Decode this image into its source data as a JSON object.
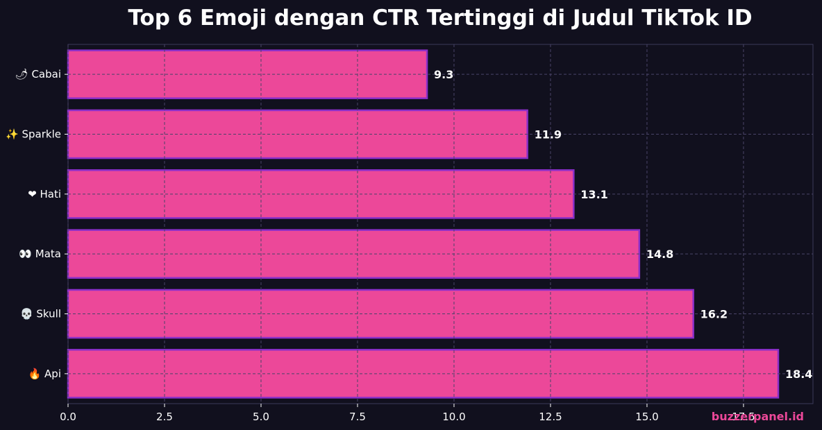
{
  "chart_data": {
    "type": "bar",
    "orientation": "horizontal",
    "title": "Top 6 Emoji dengan CTR Tertinggi di Judul TikTok ID",
    "categories": [
      "🌶 Cabai",
      "✨ Sparkle",
      "❤ Hati",
      "👀 Mata",
      "💀 Skull",
      "🔥 Api"
    ],
    "values": [
      9.3,
      11.9,
      13.1,
      14.8,
      16.2,
      18.4
    ],
    "value_labels": [
      "9.3",
      "11.9",
      "13.1",
      "14.8",
      "16.2",
      "18.4"
    ],
    "xlabel": "",
    "ylabel": "",
    "xlim": [
      0,
      19.3
    ],
    "xticks": [
      0,
      2.5,
      5,
      7.5,
      10,
      12.5,
      15,
      17.5
    ],
    "xtick_labels": [
      "0.0",
      "2.5",
      "5.0",
      "7.5",
      "10.0",
      "12.5",
      "15.0",
      "17.5"
    ],
    "grid": true,
    "legend": "none"
  },
  "colors": {
    "background": "#11101e",
    "bar_fill": "#ec4899",
    "bar_edge": "#8b2fc9",
    "grid": "#4a4468",
    "spine": "#3c3a5a",
    "text": "#ffffff",
    "watermark": "#ec4899"
  },
  "watermark": "buzzerpanel.id"
}
